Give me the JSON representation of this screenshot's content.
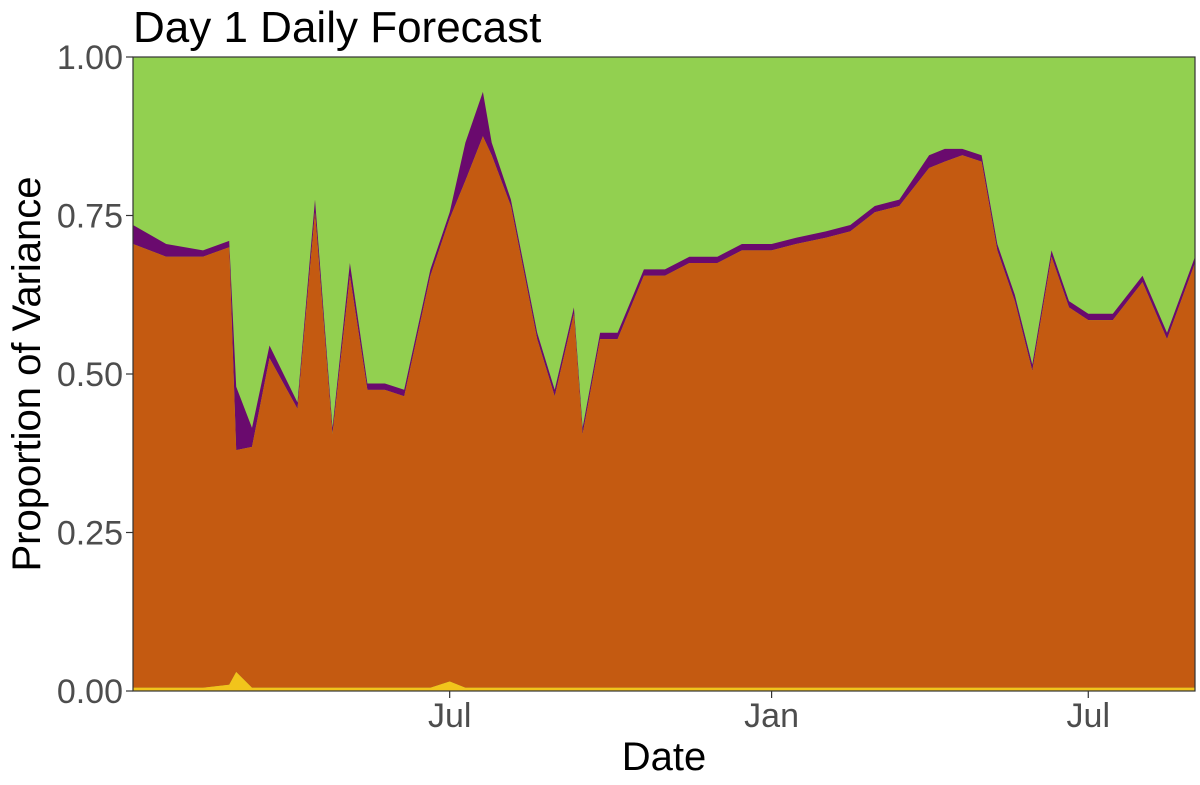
{
  "chart_data": {
    "type": "area",
    "title": "Day 1 Daily Forecast",
    "xlabel": "Date",
    "ylabel": "Proportion of Variance",
    "ylim": [
      0,
      1
    ],
    "xlim": [
      "2017-01-01",
      "2018-08-31"
    ],
    "y_ticks": [
      {
        "value": 0,
        "label": "0.00"
      },
      {
        "value": 0.25,
        "label": "0.25"
      },
      {
        "value": 0.5,
        "label": "0.50"
      },
      {
        "value": 0.75,
        "label": "0.75"
      },
      {
        "value": 1,
        "label": "1.00"
      }
    ],
    "x_ticks": [
      {
        "date": "2017-07-01",
        "label": "Jul"
      },
      {
        "date": "2018-01-01",
        "label": "Jan"
      },
      {
        "date": "2018-07-01",
        "label": "Jul"
      }
    ],
    "stacking": "cumulative, bottom to top",
    "legend": "none",
    "grid": false,
    "x": [
      "2017-01-01",
      "2017-01-20",
      "2017-02-10",
      "2017-02-25",
      "2017-03-01",
      "2017-03-10",
      "2017-03-20",
      "2017-04-05",
      "2017-04-15",
      "2017-04-25",
      "2017-05-05",
      "2017-05-15",
      "2017-05-25",
      "2017-06-05",
      "2017-06-20",
      "2017-07-01",
      "2017-07-10",
      "2017-07-20",
      "2017-07-25",
      "2017-08-05",
      "2017-08-20",
      "2017-08-30",
      "2017-09-10",
      "2017-09-15",
      "2017-09-25",
      "2017-10-05",
      "2017-10-20",
      "2017-11-01",
      "2017-11-15",
      "2017-12-01",
      "2017-12-15",
      "2018-01-01",
      "2018-01-15",
      "2018-02-01",
      "2018-02-15",
      "2018-03-01",
      "2018-03-15",
      "2018-04-01",
      "2018-04-10",
      "2018-04-20",
      "2018-05-01",
      "2018-05-10",
      "2018-05-20",
      "2018-05-30",
      "2018-06-10",
      "2018-06-20",
      "2018-07-01",
      "2018-07-15",
      "2018-08-01",
      "2018-08-15",
      "2018-08-31"
    ],
    "series": [
      {
        "color": "#f2c41b",
        "values": [
          0.005,
          0.005,
          0.005,
          0.01,
          0.03,
          0.005,
          0.005,
          0.005,
          0.005,
          0.005,
          0.005,
          0.005,
          0.005,
          0.005,
          0.005,
          0.015,
          0.005,
          0.005,
          0.005,
          0.005,
          0.005,
          0.005,
          0.005,
          0.005,
          0.005,
          0.005,
          0.005,
          0.005,
          0.005,
          0.005,
          0.005,
          0.005,
          0.005,
          0.005,
          0.005,
          0.005,
          0.005,
          0.005,
          0.005,
          0.005,
          0.005,
          0.005,
          0.005,
          0.005,
          0.005,
          0.005,
          0.005,
          0.005,
          0.005,
          0.005,
          0.005
        ]
      },
      {
        "color": "#c45a11",
        "values": [
          0.7,
          0.68,
          0.68,
          0.69,
          0.35,
          0.38,
          0.52,
          0.44,
          0.75,
          0.4,
          0.65,
          0.47,
          0.47,
          0.46,
          0.65,
          0.73,
          0.8,
          0.87,
          0.84,
          0.76,
          0.55,
          0.46,
          0.59,
          0.4,
          0.55,
          0.55,
          0.65,
          0.65,
          0.67,
          0.67,
          0.69,
          0.69,
          0.7,
          0.71,
          0.72,
          0.75,
          0.76,
          0.82,
          0.83,
          0.84,
          0.83,
          0.69,
          0.61,
          0.5,
          0.68,
          0.6,
          0.58,
          0.58,
          0.64,
          0.55,
          0.67
        ]
      },
      {
        "color": "#6a0a6e",
        "values": [
          0.03,
          0.02,
          0.01,
          0.01,
          0.1,
          0.03,
          0.02,
          0.01,
          0.02,
          0.01,
          0.02,
          0.01,
          0.01,
          0.01,
          0.01,
          0.01,
          0.06,
          0.07,
          0.02,
          0.01,
          0.01,
          0.01,
          0.01,
          0.01,
          0.01,
          0.01,
          0.01,
          0.01,
          0.01,
          0.01,
          0.01,
          0.01,
          0.01,
          0.01,
          0.01,
          0.01,
          0.01,
          0.02,
          0.02,
          0.01,
          0.01,
          0.01,
          0.01,
          0.01,
          0.01,
          0.01,
          0.01,
          0.01,
          0.01,
          0.01,
          0.01
        ]
      }
    ],
    "top_band_color": "#92d050"
  }
}
